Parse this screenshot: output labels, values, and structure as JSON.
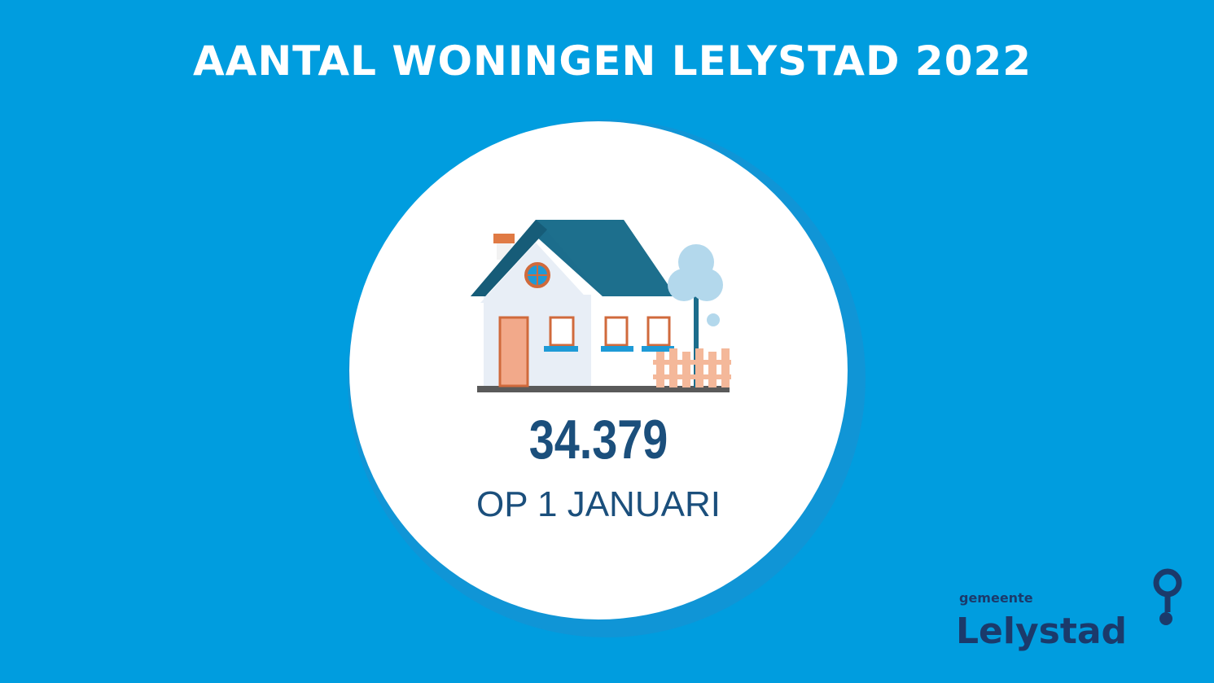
{
  "header": {
    "title": "AANTAL WONINGEN LELYSTAD 2022"
  },
  "stat": {
    "value": "34.379",
    "caption": "OP 1 JANUARI"
  },
  "logo": {
    "small": "gemeente",
    "large": "Lelystad"
  }
}
